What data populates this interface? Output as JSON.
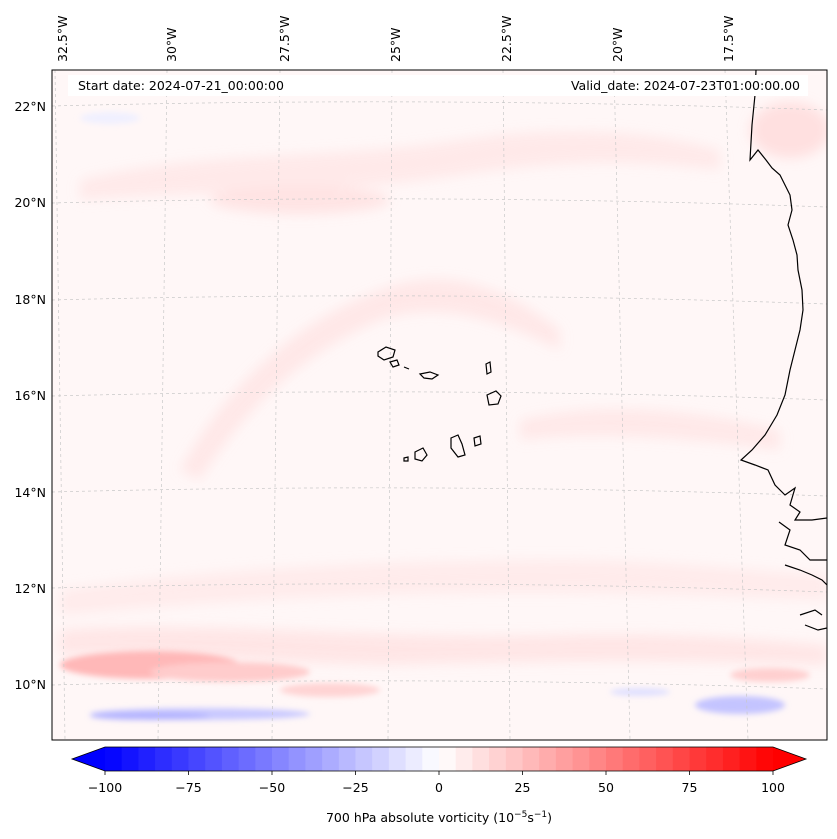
{
  "header": {
    "start_date": "Start date: 2024-07-21_00:00:00",
    "valid_date": "Valid_date: 2024-07-23T01:00:00.00"
  },
  "map": {
    "lon_labels": [
      "32.5°W",
      "30°W",
      "27.5°W",
      "25°W",
      "22.5°W",
      "20°W",
      "17.5°W"
    ],
    "lat_labels": [
      "22°N",
      "20°N",
      "18°N",
      "16°N",
      "14°N",
      "12°N",
      "10°N"
    ]
  },
  "colorbar": {
    "tick_labels": [
      "−100",
      "−75",
      "−50",
      "−25",
      "0",
      "25",
      "50",
      "75",
      "100"
    ],
    "min": -100,
    "max": 100,
    "step": 5,
    "color_low": "#0000ff",
    "color_mid": "#ffffff",
    "color_high": "#ff0000",
    "label_text": "700 hPa absolute vorticity (10",
    "label_exp1": "−5",
    "label_mid": "s",
    "label_exp2": "−1",
    "label_end": ")"
  }
}
